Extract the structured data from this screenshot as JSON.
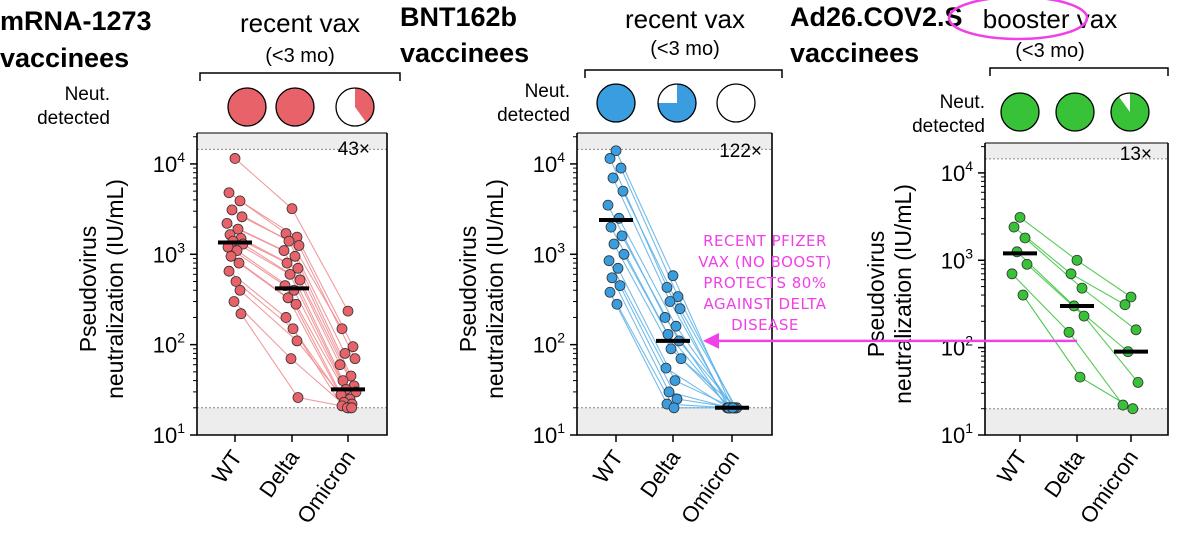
{
  "colors": {
    "mrna": "#e8626a",
    "mrna_line": "#ee8a8e",
    "bnt": "#3a9de0",
    "bnt_line": "#5ab0e8",
    "ad26": "#38c238",
    "annotation": "#f040e8",
    "shade": "#ededed",
    "black": "#000000"
  },
  "annotation": {
    "lines": [
      "RECENT PFIZER",
      "VAX (NO BOOST)",
      "PROTECTS 80%",
      "AGAINST DELTA",
      "DISEASE"
    ],
    "target_panel": 1,
    "target_category": "Delta",
    "target_value": 110
  },
  "panels": [
    {
      "title_lines": [
        "mRNA-1273",
        "vaccinees"
      ],
      "group_label": "recent vax",
      "group_label_circled": "",
      "group_sub": "(<3 mo)",
      "neut_label_lines": [
        "Neut.",
        "detected"
      ],
      "fold_label": "43×",
      "neut_fractions": [
        1.0,
        1.0,
        0.4
      ],
      "color_key": "mrna"
    },
    {
      "title_lines": [
        "BNT162b",
        "vaccinees"
      ],
      "group_label": "recent vax",
      "group_label_circled": "",
      "group_sub": "(<3 mo)",
      "neut_label_lines": [
        "Neut.",
        "detected"
      ],
      "fold_label": "122×",
      "neut_fractions": [
        1.0,
        0.75,
        0.0
      ],
      "color_key": "bnt"
    },
    {
      "title_lines": [
        "Ad26.COV2.S",
        "vaccinees"
      ],
      "group_label": "vax",
      "group_label_circled": "booster",
      "group_sub": "(<3 mo)",
      "neut_label_lines": [
        "Neut.",
        "detected"
      ],
      "fold_label": "13×",
      "neut_fractions": [
        1.0,
        1.0,
        0.9
      ],
      "color_key": "ad26"
    }
  ],
  "chart_data": [
    {
      "type": "scatter",
      "title": "mRNA-1273 vaccinees",
      "ylabel": "Pseudovirus neutralization (IU/mL)",
      "yscale": "log",
      "ylim": [
        10,
        22000
      ],
      "yticks": [
        10,
        100,
        1000,
        10000
      ],
      "ytick_labels": [
        [
          "10",
          "1"
        ],
        [
          "10",
          "2"
        ],
        [
          "10",
          "3"
        ],
        [
          "10",
          "4"
        ]
      ],
      "upper_limit": 14500,
      "lower_limit": 20,
      "categories": [
        "WT",
        "Delta",
        "Omicron"
      ],
      "medians": [
        1350,
        420,
        32
      ],
      "paired_series": [
        [
          11500,
          3200,
          235
        ],
        [
          4800,
          1700,
          150
        ],
        [
          3900,
          1550,
          95
        ],
        [
          3100,
          1400,
          80
        ],
        [
          2600,
          1250,
          70
        ],
        [
          2200,
          1100,
          60
        ],
        [
          1900,
          950,
          45
        ],
        [
          1650,
          800,
          40
        ],
        [
          1500,
          700,
          35
        ],
        [
          1400,
          600,
          32
        ],
        [
          1300,
          520,
          30
        ],
        [
          1200,
          450,
          28
        ],
        [
          1100,
          400,
          25
        ],
        [
          950,
          330,
          23
        ],
        [
          800,
          280,
          22
        ],
        [
          650,
          200,
          21
        ],
        [
          500,
          150,
          20
        ],
        [
          400,
          110,
          20
        ],
        [
          300,
          70,
          20
        ],
        [
          220,
          26,
          20
        ]
      ]
    },
    {
      "type": "scatter",
      "title": "BNT162b vaccinees",
      "ylabel": "Pseudovirus neutralization (IU/mL)",
      "yscale": "log",
      "ylim": [
        10,
        22000
      ],
      "yticks": [
        10,
        100,
        1000,
        10000
      ],
      "ytick_labels": [
        [
          "10",
          "1"
        ],
        [
          "10",
          "2"
        ],
        [
          "10",
          "3"
        ],
        [
          "10",
          "4"
        ]
      ],
      "upper_limit": 14500,
      "lower_limit": 20,
      "categories": [
        "WT",
        "Delta",
        "Omicron"
      ],
      "medians": [
        2400,
        110,
        20
      ],
      "paired_series": [
        [
          14000,
          580,
          20
        ],
        [
          11500,
          430,
          20
        ],
        [
          9000,
          340,
          20
        ],
        [
          7000,
          300,
          20
        ],
        [
          5000,
          250,
          20
        ],
        [
          3500,
          200,
          20
        ],
        [
          2500,
          160,
          20
        ],
        [
          2000,
          130,
          20
        ],
        [
          1600,
          110,
          20
        ],
        [
          1300,
          90,
          20
        ],
        [
          1000,
          70,
          20
        ],
        [
          850,
          55,
          20
        ],
        [
          700,
          40,
          20
        ],
        [
          550,
          30,
          20
        ],
        [
          450,
          25,
          20
        ],
        [
          380,
          22,
          20
        ],
        [
          280,
          20,
          20
        ]
      ]
    },
    {
      "type": "scatter",
      "title": "Ad26.COV2.S vaccinees",
      "ylabel": "Pseudovirus neutralization (IU/mL)",
      "yscale": "log",
      "ylim": [
        10,
        22000
      ],
      "yticks": [
        10,
        100,
        1000,
        10000
      ],
      "ytick_labels": [
        [
          "10",
          "1"
        ],
        [
          "10",
          "2"
        ],
        [
          "10",
          "3"
        ],
        [
          "10",
          "4"
        ]
      ],
      "upper_limit": 14500,
      "lower_limit": 20,
      "categories": [
        "WT",
        "Delta",
        "Omicron"
      ],
      "medians": [
        1200,
        300,
        90
      ],
      "paired_series": [
        [
          3100,
          1000,
          380
        ],
        [
          2400,
          700,
          310
        ],
        [
          1800,
          480,
          160
        ],
        [
          1250,
          300,
          90
        ],
        [
          900,
          230,
          40
        ],
        [
          700,
          150,
          22
        ],
        [
          400,
          46,
          20
        ]
      ],
      "highlighted_series_index": 6
    }
  ]
}
